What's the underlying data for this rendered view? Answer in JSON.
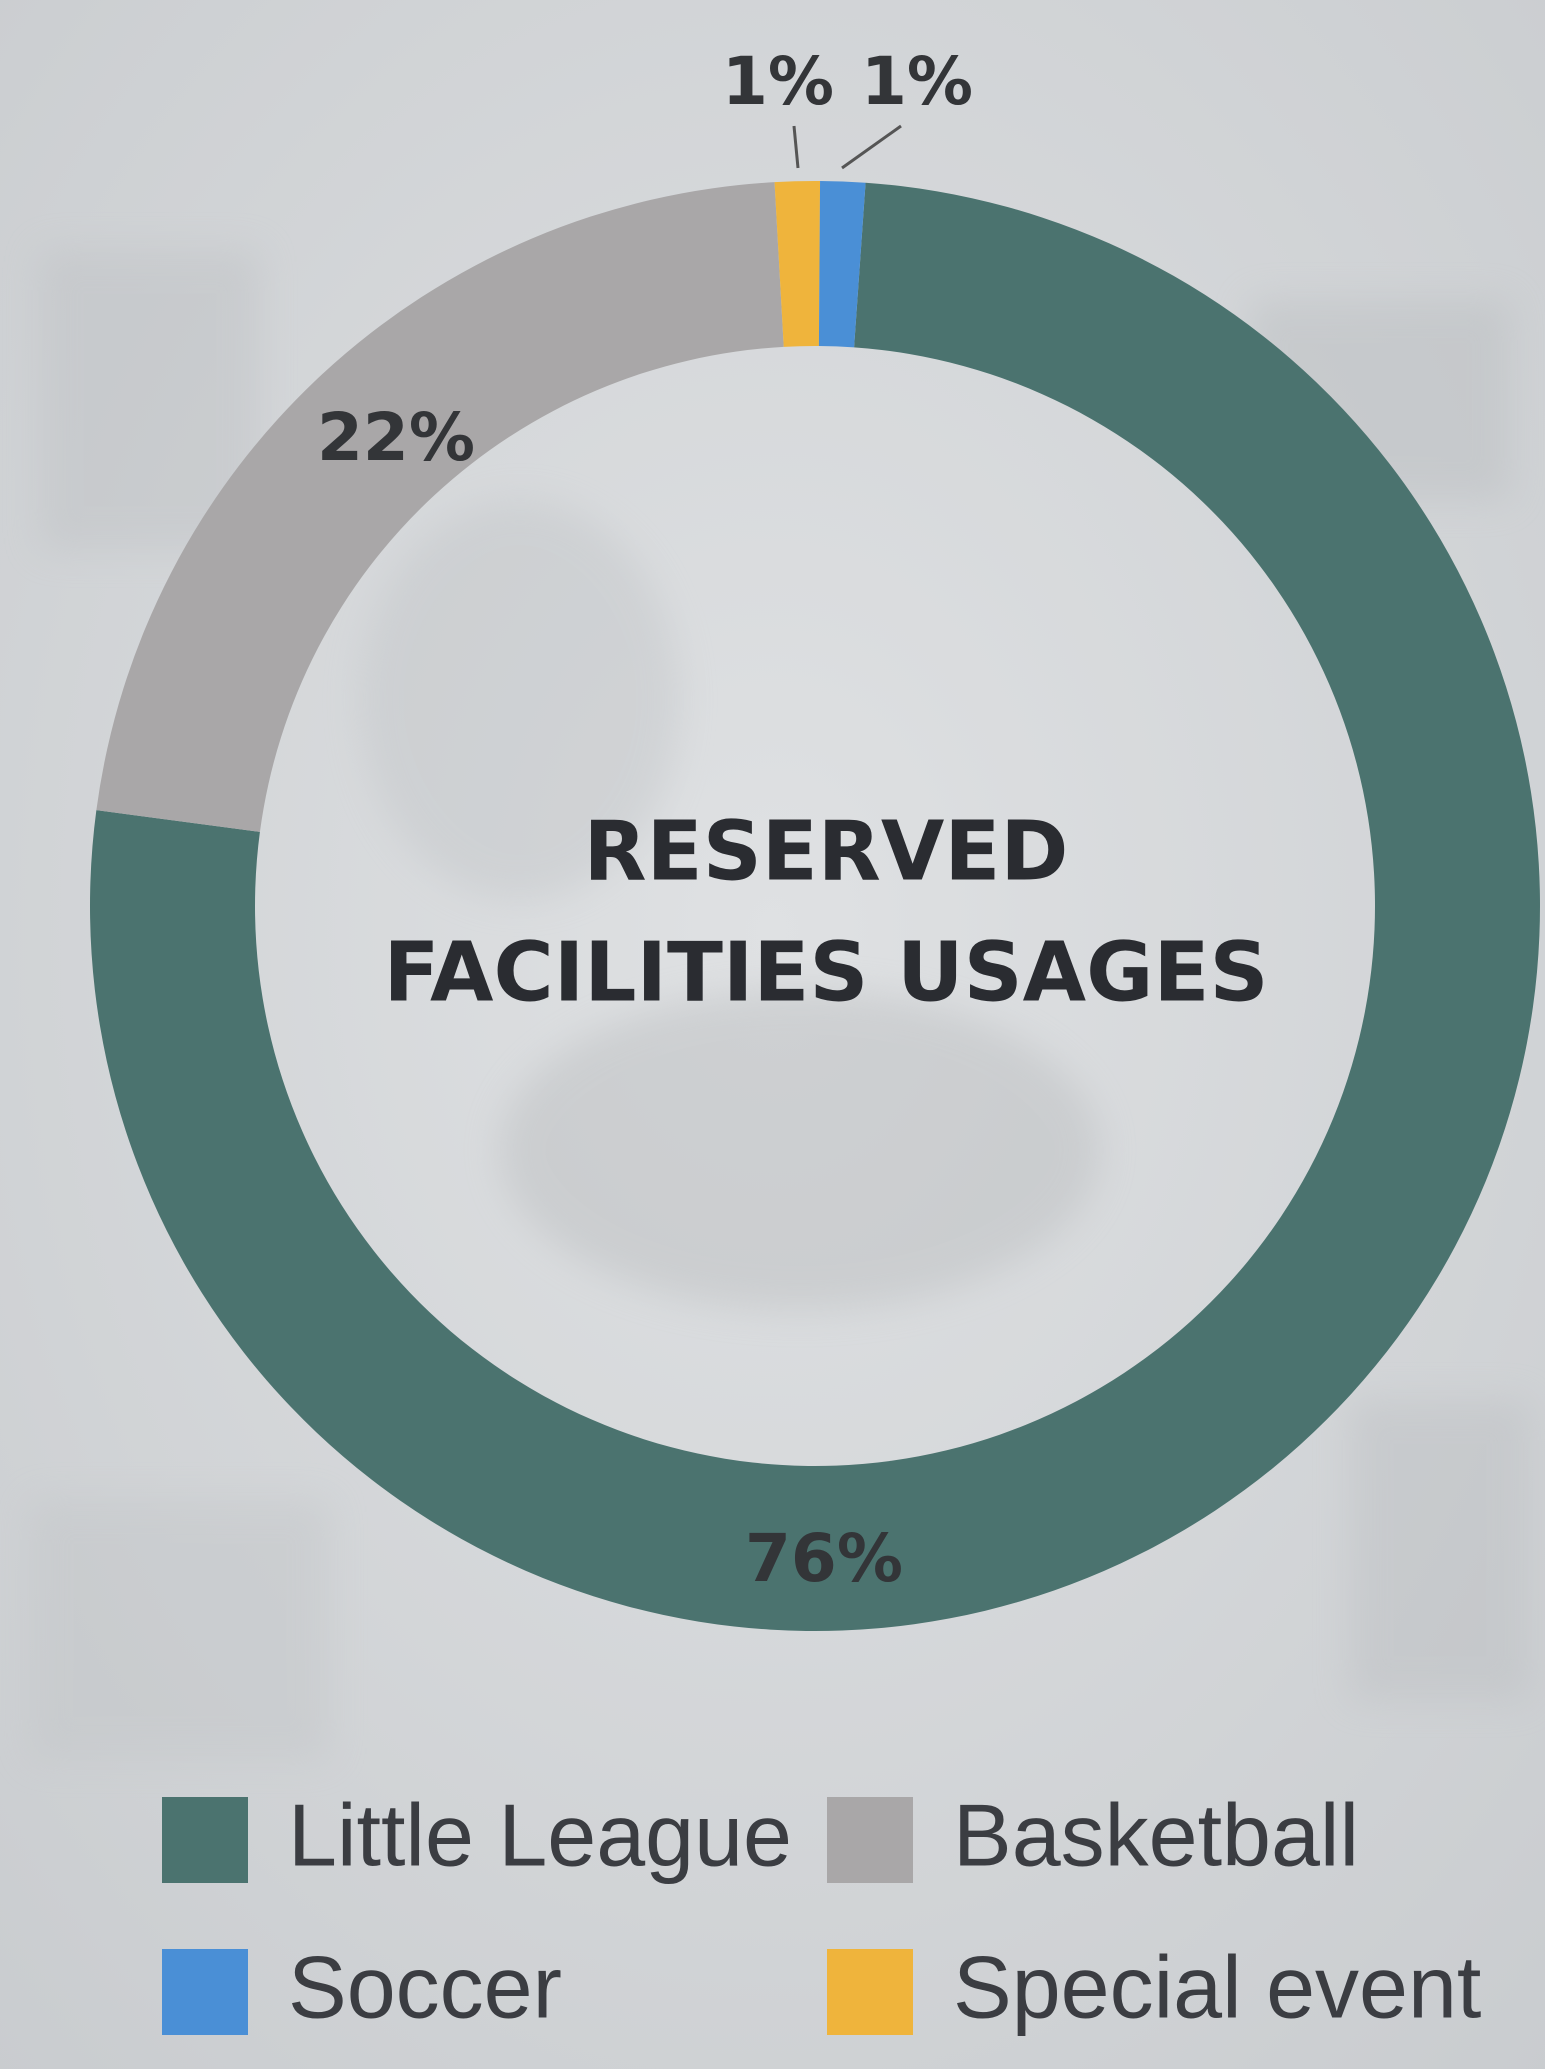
{
  "chart_data": {
    "type": "donut",
    "title": [
      "RESERVED",
      "FACILITIES USAGES"
    ],
    "categories": [
      "Little League",
      "Basketball",
      "Special event",
      "Soccer"
    ],
    "values": [
      76,
      22,
      1,
      1
    ],
    "value_labels": [
      "76%",
      "22%",
      "1%",
      "1%"
    ],
    "colors": [
      "#4b736f",
      "#a9a7a8",
      "#efb43c",
      "#4a8fd6"
    ]
  }
}
